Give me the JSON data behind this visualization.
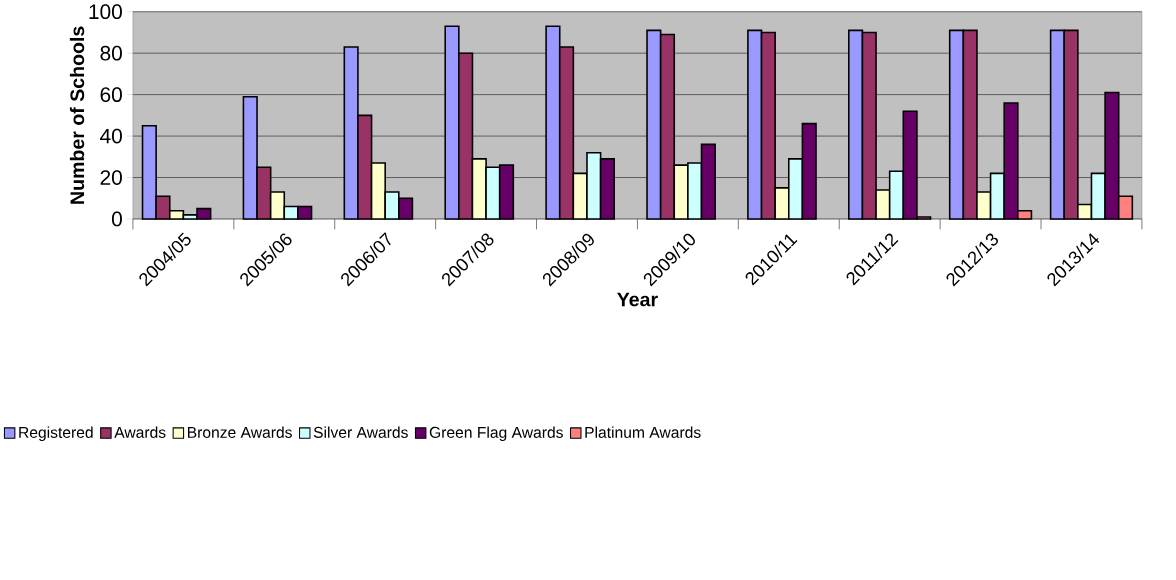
{
  "chart_data": {
    "type": "bar",
    "xlabel": "Year",
    "ylabel": "Number of Schools",
    "categories": [
      "2004/05",
      "2005/06",
      "2006/07",
      "2007/08",
      "2008/09",
      "2009/10",
      "2010/11",
      "2011/12",
      "2012/13",
      "2013/14"
    ],
    "series": [
      {
        "name": "Registered",
        "color": "#9999ff",
        "values": [
          45,
          59,
          83,
          93,
          93,
          91,
          91,
          91,
          91,
          91
        ]
      },
      {
        "name": "Awards",
        "color": "#993366",
        "values": [
          11,
          25,
          50,
          80,
          83,
          89,
          90,
          90,
          91,
          91
        ]
      },
      {
        "name": "Bronze Awards",
        "color": "#ffffcc",
        "values": [
          4,
          13,
          27,
          29,
          22,
          26,
          15,
          14,
          13,
          7
        ]
      },
      {
        "name": "Silver Awards",
        "color": "#ccffff",
        "values": [
          2,
          6,
          13,
          25,
          32,
          27,
          29,
          23,
          22,
          22
        ]
      },
      {
        "name": "Green Flag Awards",
        "color": "#660066",
        "values": [
          5,
          6,
          10,
          26,
          29,
          36,
          46,
          52,
          56,
          61
        ]
      },
      {
        "name": "Platinum Awards",
        "color": "#ff8080",
        "values": [
          null,
          null,
          null,
          null,
          null,
          null,
          null,
          1,
          4,
          11
        ]
      }
    ],
    "ylim": [
      0,
      100
    ],
    "yticks": [
      0,
      20,
      40,
      60,
      80,
      100
    ],
    "grid": "y",
    "legend": "bottom"
  }
}
